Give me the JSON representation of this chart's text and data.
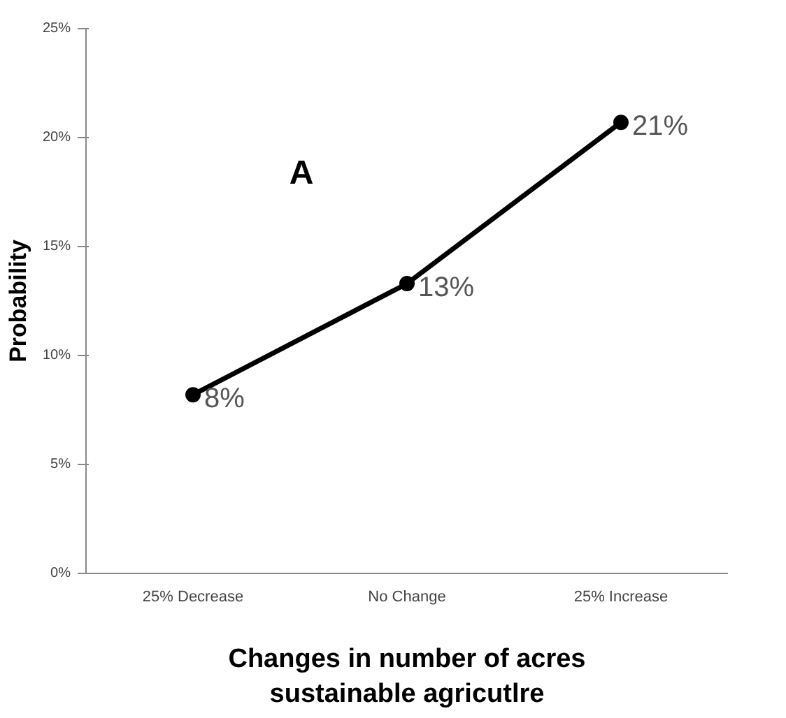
{
  "chart_data": {
    "type": "line",
    "categories": [
      "25% Decrease",
      "No Change",
      "25% Increase"
    ],
    "series": [
      {
        "color": "#000000",
        "values": [
          8.2,
          13.3,
          20.7
        ],
        "value_labels": [
          "8%",
          "13%",
          "21%"
        ]
      }
    ],
    "xlabel": "Changes in number of acres\nsustainable agricutlre",
    "ylabel": "Probability",
    "ylim": [
      0,
      25
    ],
    "yticks": [
      {
        "value": 0,
        "label": "0%"
      },
      {
        "value": 5,
        "label": "5%"
      },
      {
        "value": 10,
        "label": "10%"
      },
      {
        "value": 15,
        "label": "15%"
      },
      {
        "value": 20,
        "label": "20%"
      },
      {
        "value": 25,
        "label": "25%"
      }
    ],
    "annotations": [
      "A"
    ],
    "grid": false,
    "marker": "circle",
    "line_style": "solid"
  }
}
